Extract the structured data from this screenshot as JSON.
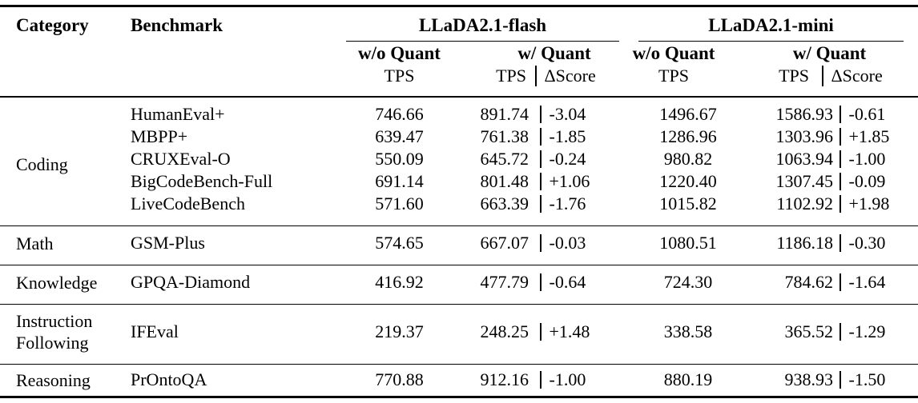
{
  "header": {
    "category": "Category",
    "benchmark": "Benchmark",
    "flash_title": "LLaDA2.1-flash",
    "mini_title": "LLaDA2.1-mini",
    "wo_quant": "w/o Quant",
    "w_quant": "w/ Quant",
    "tps": "TPS",
    "delta_score": "ΔScore",
    "divider_glyph": "|"
  },
  "colors": {
    "text": "#000000",
    "rule": "#000000",
    "background": "#ffffff"
  },
  "sections": [
    {
      "category": "Coding",
      "rows": [
        {
          "benchmark": "HumanEval+",
          "flash_wo_tps": "746.66",
          "flash_w_tps": "891.74",
          "flash_delta": "-3.04",
          "mini_wo_tps": "1496.67",
          "mini_w_tps": "1586.93",
          "mini_delta": "-0.61"
        },
        {
          "benchmark": "MBPP+",
          "flash_wo_tps": "639.47",
          "flash_w_tps": "761.38",
          "flash_delta": "-1.85",
          "mini_wo_tps": "1286.96",
          "mini_w_tps": "1303.96",
          "mini_delta": "+1.85"
        },
        {
          "benchmark": "CRUXEval-O",
          "flash_wo_tps": "550.09",
          "flash_w_tps": "645.72",
          "flash_delta": "-0.24",
          "mini_wo_tps": "980.82",
          "mini_w_tps": "1063.94",
          "mini_delta": "-1.00"
        },
        {
          "benchmark": "BigCodeBench-Full",
          "flash_wo_tps": "691.14",
          "flash_w_tps": "801.48",
          "flash_delta": "+1.06",
          "mini_wo_tps": "1220.40",
          "mini_w_tps": "1307.45",
          "mini_delta": "-0.09"
        },
        {
          "benchmark": "LiveCodeBench",
          "flash_wo_tps": "571.60",
          "flash_w_tps": "663.39",
          "flash_delta": "-1.76",
          "mini_wo_tps": "1015.82",
          "mini_w_tps": "1102.92",
          "mini_delta": "+1.98"
        }
      ]
    },
    {
      "category": "Math",
      "rows": [
        {
          "benchmark": "GSM-Plus",
          "flash_wo_tps": "574.65",
          "flash_w_tps": "667.07",
          "flash_delta": "-0.03",
          "mini_wo_tps": "1080.51",
          "mini_w_tps": "1186.18",
          "mini_delta": "-0.30"
        }
      ]
    },
    {
      "category": "Knowledge",
      "rows": [
        {
          "benchmark": "GPQA-Diamond",
          "flash_wo_tps": "416.92",
          "flash_w_tps": "477.79",
          "flash_delta": "-0.64",
          "mini_wo_tps": "724.30",
          "mini_w_tps": "784.62",
          "mini_delta": "-1.64"
        }
      ]
    },
    {
      "category": "Instruction Following",
      "rows": [
        {
          "benchmark": "IFEval",
          "flash_wo_tps": "219.37",
          "flash_w_tps": "248.25",
          "flash_delta": "+1.48",
          "mini_wo_tps": "338.58",
          "mini_w_tps": "365.52",
          "mini_delta": "-1.29"
        }
      ]
    },
    {
      "category": "Reasoning",
      "rows": [
        {
          "benchmark": "PrOntoQA",
          "flash_wo_tps": "770.88",
          "flash_w_tps": "912.16",
          "flash_delta": "-1.00",
          "mini_wo_tps": "880.19",
          "mini_w_tps": "938.93",
          "mini_delta": "-1.50"
        }
      ]
    }
  ]
}
